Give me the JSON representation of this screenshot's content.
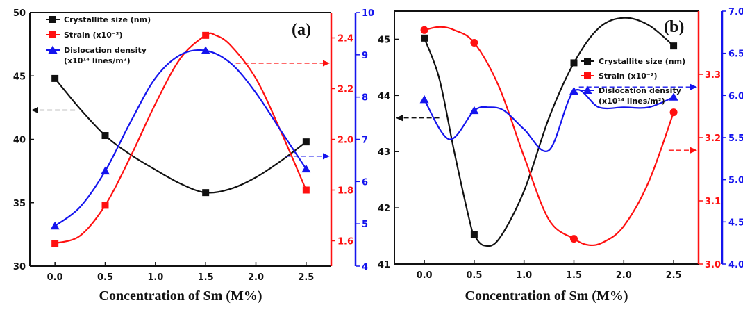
{
  "colors": {
    "black": "#111111",
    "red": "#ff1010",
    "blue": "#1414ee"
  },
  "chart_data": [
    {
      "type": "line",
      "panel_label": "(a)",
      "xlabel": "Concentration of Sm (M%)",
      "x_ticks": [
        "0.0",
        "0.5",
        "1.0",
        "1.5",
        "2.0",
        "2.5"
      ],
      "xlim": [
        -0.25,
        2.75
      ],
      "legend": {
        "placement": "top-center"
      },
      "axes": {
        "left": {
          "ylim": [
            30,
            50
          ],
          "ticks": [
            "30",
            "35",
            "40",
            "45",
            "50"
          ],
          "color": "#111111"
        },
        "right1": {
          "ylim": [
            1.5,
            2.5
          ],
          "ticks": [
            "1.6",
            "1.8",
            "2.0",
            "2.2",
            "2.4"
          ],
          "color": "#ff1010"
        },
        "right2": {
          "ylim": [
            4,
            10
          ],
          "ticks": [
            "4",
            "5",
            "6",
            "7",
            "8",
            "9",
            "10"
          ],
          "color": "#1414ee"
        }
      },
      "series": [
        {
          "name": "Crystallite size (nm)",
          "axis": "left",
          "marker": "square",
          "color": "#111111",
          "x": [
            0.0,
            0.5,
            1.5,
            2.5
          ],
          "y": [
            44.8,
            40.3,
            35.8,
            39.8
          ],
          "curve": [
            [
              0.0,
              44.8
            ],
            [
              0.25,
              42.4
            ],
            [
              0.5,
              40.3
            ],
            [
              0.75,
              38.8
            ],
            [
              1.0,
              37.6
            ],
            [
              1.25,
              36.5
            ],
            [
              1.5,
              35.8
            ],
            [
              1.75,
              36.1
            ],
            [
              2.0,
              37.0
            ],
            [
              2.25,
              38.3
            ],
            [
              2.5,
              39.8
            ]
          ]
        },
        {
          "name": "Strain (x10⁻²)",
          "axis": "right1",
          "marker": "square",
          "color": "#ff1010",
          "x": [
            0.0,
            0.5,
            1.5,
            2.5
          ],
          "y": [
            1.59,
            1.74,
            2.41,
            1.8
          ],
          "curve": [
            [
              0.0,
              1.59
            ],
            [
              0.25,
              1.62
            ],
            [
              0.5,
              1.74
            ],
            [
              0.75,
              1.93
            ],
            [
              1.0,
              2.14
            ],
            [
              1.25,
              2.32
            ],
            [
              1.5,
              2.41
            ],
            [
              1.6,
              2.41
            ],
            [
              1.75,
              2.37
            ],
            [
              2.0,
              2.24
            ],
            [
              2.25,
              2.03
            ],
            [
              2.5,
              1.8
            ]
          ]
        },
        {
          "name": "Dislocation density (x10¹⁴ lines/m²)",
          "axis": "right2",
          "marker": "triangle",
          "color": "#1414ee",
          "x": [
            0.0,
            0.5,
            1.5,
            2.5
          ],
          "y": [
            4.95,
            6.25,
            9.1,
            6.3
          ],
          "curve": [
            [
              0.0,
              4.95
            ],
            [
              0.25,
              5.4
            ],
            [
              0.5,
              6.25
            ],
            [
              0.75,
              7.4
            ],
            [
              1.0,
              8.45
            ],
            [
              1.25,
              9.0
            ],
            [
              1.5,
              9.1
            ],
            [
              1.75,
              8.8
            ],
            [
              2.0,
              8.1
            ],
            [
              2.25,
              7.2
            ],
            [
              2.5,
              6.3
            ]
          ]
        }
      ],
      "arrows": [
        {
          "color": "#111111",
          "axis": "left",
          "y": 42.3,
          "from_x": 0.2,
          "to_x": -0.25
        },
        {
          "color": "#ff1010",
          "axis": "right1",
          "y": 2.3,
          "from_x": 1.8,
          "to_x": 2.75
        },
        {
          "color": "#1414ee",
          "axis": "right2",
          "y": 6.6,
          "from_x": 2.3,
          "to_x": 2.75
        }
      ]
    },
    {
      "type": "line",
      "panel_label": "(b)",
      "xlabel": "Concentration of Sm (M%)",
      "x_ticks": [
        "0.0",
        "0.5",
        "1.0",
        "1.5",
        "2.0",
        "2.5"
      ],
      "xlim": [
        -0.3,
        2.75
      ],
      "legend": {
        "placement": "right"
      },
      "axes": {
        "left": {
          "ylim": [
            41,
            45.5
          ],
          "ticks": [
            "41",
            "42",
            "43",
            "44",
            "45"
          ],
          "color": "#111111"
        },
        "right1": {
          "ylim": [
            3.0,
            3.4
          ],
          "ticks": [
            "3.0",
            "3.1",
            "3.2",
            "3.3"
          ],
          "color": "#ff1010"
        },
        "right2": {
          "ylim": [
            4.0,
            7.0
          ],
          "ticks": [
            "4.0",
            "4.5",
            "5.0",
            "5.5",
            "6.0",
            "6.5",
            "7.0"
          ],
          "color": "#1414ee"
        }
      },
      "series": [
        {
          "name": "Crystallite size (nm)",
          "axis": "left",
          "marker": "square",
          "color": "#111111",
          "x": [
            0.0,
            0.5,
            1.5,
            2.5
          ],
          "y": [
            45.02,
            41.52,
            44.58,
            44.88
          ],
          "curve": [
            [
              0.0,
              45.02
            ],
            [
              0.15,
              44.3
            ],
            [
              0.3,
              43.0
            ],
            [
              0.45,
              41.8
            ],
            [
              0.5,
              41.52
            ],
            [
              0.6,
              41.33
            ],
            [
              0.75,
              41.45
            ],
            [
              1.0,
              42.3
            ],
            [
              1.25,
              43.6
            ],
            [
              1.5,
              44.58
            ],
            [
              1.75,
              45.2
            ],
            [
              2.0,
              45.38
            ],
            [
              2.25,
              45.25
            ],
            [
              2.5,
              44.88
            ]
          ]
        },
        {
          "name": "Strain (x10⁻²)",
          "axis": "right1",
          "marker": "circle",
          "color": "#ff1010",
          "x": [
            0.0,
            0.5,
            1.5,
            2.5
          ],
          "y": [
            3.37,
            3.35,
            3.04,
            3.24
          ],
          "curve": [
            [
              0.0,
              3.37
            ],
            [
              0.15,
              3.375
            ],
            [
              0.3,
              3.37
            ],
            [
              0.5,
              3.35
            ],
            [
              0.75,
              3.28
            ],
            [
              1.0,
              3.17
            ],
            [
              1.25,
              3.07
            ],
            [
              1.5,
              3.04
            ],
            [
              1.65,
              3.03
            ],
            [
              1.8,
              3.035
            ],
            [
              2.0,
              3.06
            ],
            [
              2.25,
              3.13
            ],
            [
              2.5,
              3.24
            ]
          ]
        },
        {
          "name": "Dislocation density (x10¹⁴ lines/m²)",
          "axis": "right2",
          "marker": "triangle",
          "color": "#1414ee",
          "x": [
            0.0,
            0.5,
            1.5,
            2.5
          ],
          "y": [
            5.95,
            5.82,
            6.05,
            5.98
          ],
          "curve": [
            [
              0.0,
              5.95
            ],
            [
              0.25,
              5.48
            ],
            [
              0.5,
              5.82
            ],
            [
              0.65,
              5.86
            ],
            [
              0.8,
              5.82
            ],
            [
              1.0,
              5.6
            ],
            [
              1.25,
              5.35
            ],
            [
              1.5,
              6.05
            ],
            [
              1.75,
              5.86
            ],
            [
              2.0,
              5.86
            ],
            [
              2.25,
              5.86
            ],
            [
              2.5,
              5.98
            ]
          ]
        }
      ],
      "arrows": [
        {
          "color": "#111111",
          "axis": "left",
          "y": 43.6,
          "from_x": 0.15,
          "to_x": -0.3
        },
        {
          "color": "#ff1010",
          "axis": "right1",
          "y": 3.18,
          "from_x": 2.45,
          "to_x": 2.75
        },
        {
          "color": "#1414ee",
          "axis": "right2",
          "y": 6.1,
          "from_x": 1.55,
          "to_x": 2.75
        }
      ]
    }
  ]
}
